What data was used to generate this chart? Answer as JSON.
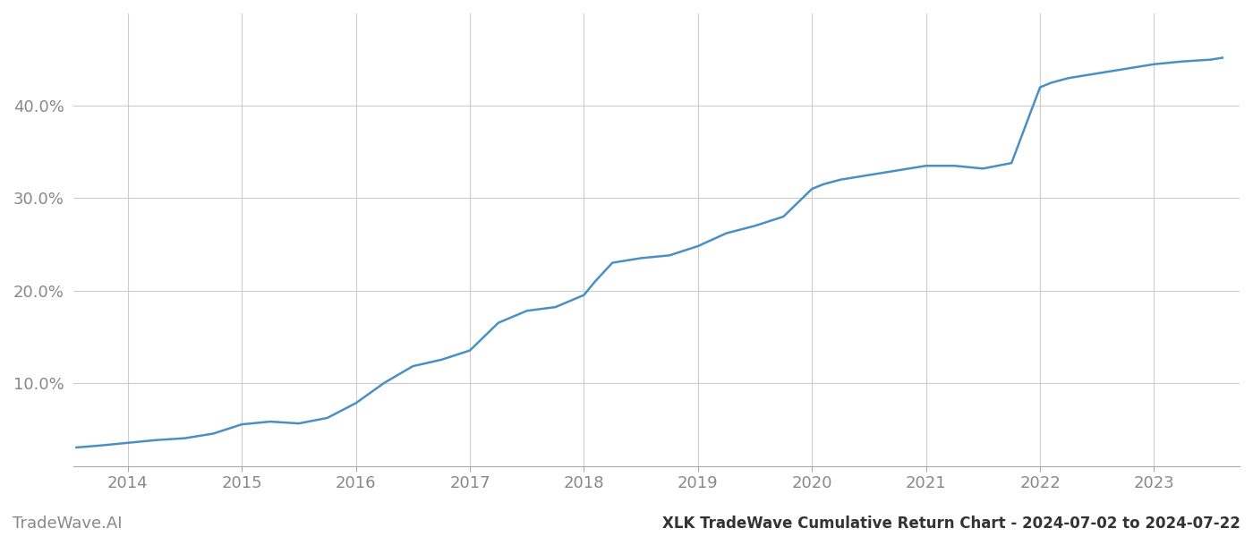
{
  "title": "XLK TradeWave Cumulative Return Chart - 2024-07-02 to 2024-07-22",
  "watermark": "TradeWave.AI",
  "line_color": "#4a90c4",
  "background_color": "#ffffff",
  "grid_color": "#cccccc",
  "x_values": [
    2013.55,
    2013.75,
    2014.0,
    2014.25,
    2014.5,
    2014.75,
    2015.0,
    2015.25,
    2015.5,
    2015.75,
    2016.0,
    2016.25,
    2016.5,
    2016.75,
    2017.0,
    2017.25,
    2017.5,
    2017.75,
    2018.0,
    2018.1,
    2018.25,
    2018.5,
    2018.75,
    2019.0,
    2019.25,
    2019.5,
    2019.75,
    2020.0,
    2020.1,
    2020.25,
    2020.5,
    2020.75,
    2021.0,
    2021.25,
    2021.5,
    2021.75,
    2022.0,
    2022.1,
    2022.25,
    2022.5,
    2022.75,
    2023.0,
    2023.25,
    2023.5,
    2023.6
  ],
  "y_values": [
    3.0,
    3.2,
    3.5,
    3.8,
    4.0,
    4.5,
    5.5,
    5.8,
    5.6,
    6.2,
    7.8,
    10.0,
    11.8,
    12.5,
    13.5,
    16.5,
    17.8,
    18.2,
    19.5,
    21.0,
    23.0,
    23.5,
    23.8,
    24.8,
    26.2,
    27.0,
    28.0,
    31.0,
    31.5,
    32.0,
    32.5,
    33.0,
    33.5,
    33.5,
    33.2,
    33.8,
    42.0,
    42.5,
    43.0,
    43.5,
    44.0,
    44.5,
    44.8,
    45.0,
    45.2
  ],
  "x_ticks": [
    2014,
    2015,
    2016,
    2017,
    2018,
    2019,
    2020,
    2021,
    2022,
    2023
  ],
  "y_ticks": [
    10.0,
    20.0,
    30.0,
    40.0
  ],
  "ylim": [
    1.0,
    50.0
  ],
  "xlim": [
    2013.52,
    2023.75
  ],
  "tick_color": "#888888",
  "tick_fontsize": 13,
  "watermark_fontsize": 13,
  "title_fontsize": 12,
  "line_width": 1.8
}
